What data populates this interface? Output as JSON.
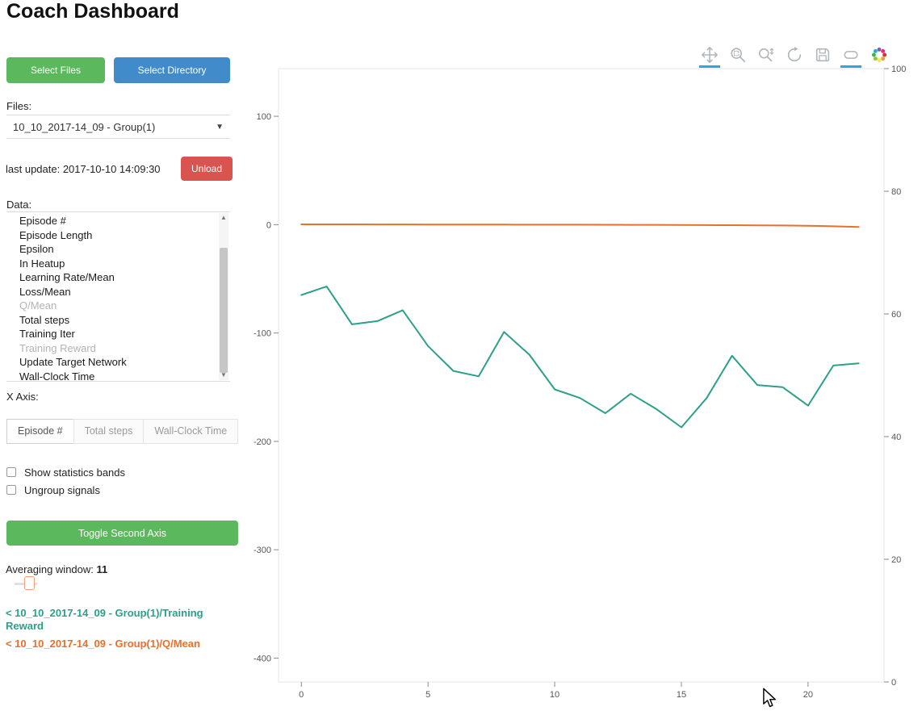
{
  "title": "Coach Dashboard",
  "colors": {
    "green": "#5cb85c",
    "blue": "#428bca",
    "red": "#d9534f",
    "tool_active": "#26aae1"
  },
  "sidebar": {
    "select_files_button": "Select Files",
    "select_directory_button": "Select Directory",
    "files_label": "Files:",
    "files_select_value": "10_10_2017-14_09 - Group(1)",
    "last_update": "last update: 2017-10-10 14:09:30",
    "unload_button": "Unload",
    "data_label": "Data:",
    "data_items": [
      {
        "label": "Episode #",
        "dimmed": false
      },
      {
        "label": "Episode Length",
        "dimmed": false
      },
      {
        "label": "Epsilon",
        "dimmed": false
      },
      {
        "label": "In Heatup",
        "dimmed": false
      },
      {
        "label": "Learning Rate/Mean",
        "dimmed": false
      },
      {
        "label": "Loss/Mean",
        "dimmed": false
      },
      {
        "label": "Q/Mean",
        "dimmed": true
      },
      {
        "label": "Total steps",
        "dimmed": false
      },
      {
        "label": "Training Iter",
        "dimmed": false
      },
      {
        "label": "Training Reward",
        "dimmed": true
      },
      {
        "label": "Update Target Network",
        "dimmed": false
      },
      {
        "label": "Wall-Clock Time",
        "dimmed": false
      }
    ],
    "x_axis_label": "X Axis:",
    "x_axis_tabs": [
      {
        "label": "Episode #",
        "active": true
      },
      {
        "label": "Total steps",
        "active": false
      },
      {
        "label": "Wall-Clock Time",
        "active": false
      }
    ],
    "checkboxes": [
      {
        "label": "Show statistics bands",
        "checked": false
      },
      {
        "label": "Ungroup signals",
        "checked": false
      }
    ],
    "toggle_second_axis_button": "Toggle Second Axis",
    "averaging_window_label": "Averaging window:",
    "averaging_window_value": "11",
    "legend": [
      {
        "label": "< 10_10_2017-14_09 - Group(1)/Training Reward",
        "color": "#2ca089"
      },
      {
        "label": "< 10_10_2017-14_09 - Group(1)/Q/Mean",
        "color": "#e8702a"
      }
    ]
  },
  "toolbar": {
    "tools": [
      {
        "name": "pan",
        "icon": "pan-icon",
        "active": true
      },
      {
        "name": "box-zoom",
        "icon": "box-zoom-icon",
        "active": false
      },
      {
        "name": "wheel-zoom",
        "icon": "wheel-zoom-icon",
        "active": false
      },
      {
        "name": "reset",
        "icon": "reset-icon",
        "active": false
      },
      {
        "name": "save",
        "icon": "save-icon",
        "active": false
      },
      {
        "name": "hover",
        "icon": "hover-icon",
        "active": true
      },
      {
        "name": "bokeh-logo",
        "icon": "bokeh-logo-icon",
        "active": false
      }
    ]
  },
  "chart_data": {
    "type": "line",
    "title": "",
    "xlabel": "",
    "ylabel": "",
    "grid": false,
    "x_ticks": [
      0,
      5,
      10,
      15,
      20
    ],
    "left_y_ticks": [
      100,
      0,
      -100,
      -200,
      -300,
      -400
    ],
    "right_y_ticks": [
      100,
      80,
      60,
      40,
      20,
      0
    ],
    "xlim": [
      -0.9,
      23
    ],
    "left_ylim": [
      -422,
      144
    ],
    "right_ylim": [
      0,
      100
    ],
    "series": [
      {
        "name": "10_10_2017-14_09 - Group(1)/Training Reward",
        "color": "#2ca089",
        "axis": "left",
        "x": [
          0,
          1,
          2,
          3,
          4,
          5,
          6,
          7,
          8,
          9,
          10,
          11,
          12,
          13,
          14,
          15,
          16,
          17,
          18,
          19,
          20,
          21,
          22
        ],
        "y": [
          -65,
          -57,
          -92,
          -89,
          -79,
          -112,
          -135,
          -140,
          -99,
          -120,
          -152,
          -160,
          -174,
          -156,
          -170,
          -187,
          -160,
          -121,
          -148,
          -150,
          -167,
          -130,
          -128
        ]
      },
      {
        "name": "10_10_2017-14_09 - Group(1)/Q/Mean",
        "color": "#e8702a",
        "axis": "left",
        "x": [
          0,
          1,
          2,
          3,
          4,
          5,
          6,
          7,
          8,
          9,
          10,
          11,
          12,
          13,
          14,
          15,
          16,
          17,
          18,
          19,
          20,
          21,
          22
        ],
        "y": [
          0.3,
          0.3,
          0.25,
          0.2,
          0.2,
          0.15,
          0.1,
          0.1,
          0.05,
          0,
          0,
          -0.05,
          -0.1,
          -0.15,
          -0.2,
          -0.3,
          -0.4,
          -0.5,
          -0.6,
          -0.8,
          -1,
          -1.5,
          -2.2
        ]
      }
    ]
  }
}
